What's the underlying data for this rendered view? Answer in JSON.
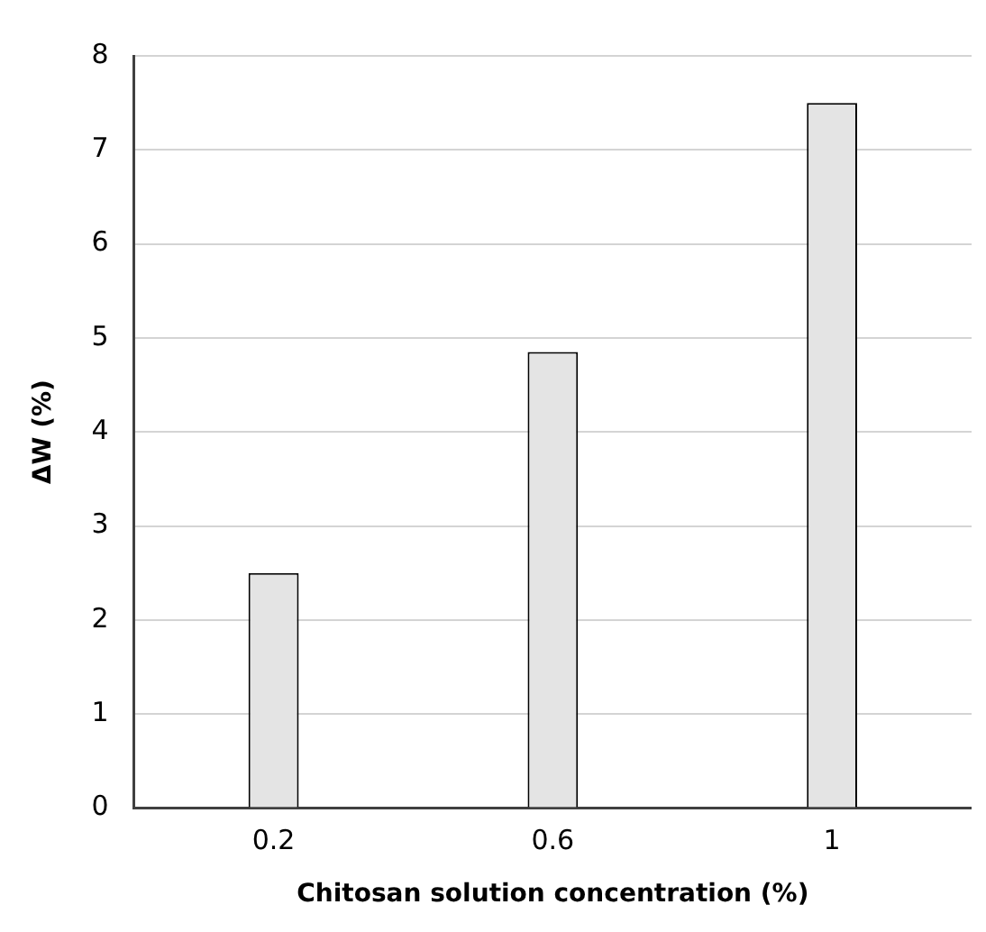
{
  "chart_data": {
    "type": "bar",
    "xlabel": "Chitosan solution concentration (%)",
    "ylabel": "ΔW (%)",
    "categories": [
      "0.2",
      "0.6",
      "1"
    ],
    "values": [
      2.5,
      4.85,
      7.5
    ],
    "color": "#e4e4e4",
    "ylim": [
      0,
      8
    ],
    "yticks": [
      0,
      1,
      2,
      3,
      4,
      5,
      6,
      7,
      8
    ],
    "grid": "y"
  }
}
